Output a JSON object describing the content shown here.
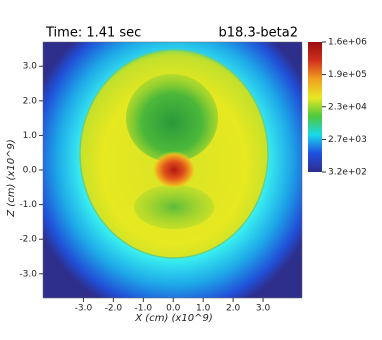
{
  "chart_data": {
    "type": "heatmap",
    "title": "b18.3-beta2",
    "subtitle": "Time: 1.41 sec",
    "x_label": "X (cm) (x10^9)",
    "y_label": "Z (cm) (x10^9)",
    "xlim": [
      -4.35,
      4.3
    ],
    "ylim": [
      -3.7,
      3.7
    ],
    "xticks": [
      {
        "value": -3,
        "label": "-3.0"
      },
      {
        "value": -2,
        "label": "-2.0"
      },
      {
        "value": -1,
        "label": "-1.0"
      },
      {
        "value": 0,
        "label": "0.0"
      },
      {
        "value": 1,
        "label": "1.0"
      },
      {
        "value": 2,
        "label": "2.0"
      },
      {
        "value": 3,
        "label": "3.0"
      }
    ],
    "yticks": [
      {
        "value": 3,
        "label": "3.0"
      },
      {
        "value": 2,
        "label": "2.0"
      },
      {
        "value": 1,
        "label": "1.0"
      },
      {
        "value": 0,
        "label": "0.0"
      },
      {
        "value": -1,
        "label": "-1.0"
      },
      {
        "value": -2,
        "label": "-2.0"
      },
      {
        "value": -3,
        "label": "-3.0"
      }
    ],
    "colorbar": {
      "log": true,
      "lim": [
        320,
        1600000
      ],
      "ticks": [
        {
          "value": 1600000,
          "label": "1.6e+06"
        },
        {
          "value": 190000,
          "label": "1.9e+05"
        },
        {
          "value": 23000,
          "label": "2.3e+04"
        },
        {
          "value": 2700,
          "label": "2.7e+03"
        },
        {
          "value": 320,
          "label": "3.2e+02"
        }
      ],
      "colors": [
        "#2e2e8c",
        "#1f4fe0",
        "#19d8e8",
        "#4cc83c",
        "#e8e823",
        "#f0a020",
        "#d0301c",
        "#9a0e10"
      ]
    }
  }
}
